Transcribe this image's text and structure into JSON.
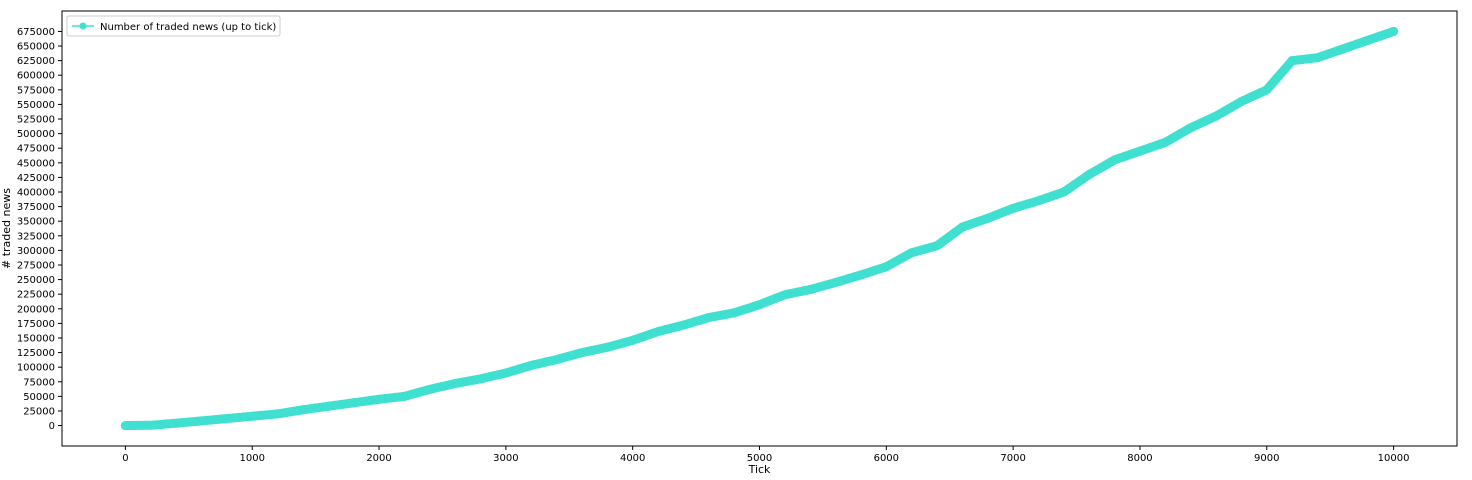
{
  "chart_data": {
    "type": "line",
    "title": "",
    "xlabel": "Tick",
    "ylabel": "# traded news",
    "xlim": [
      -500,
      10500
    ],
    "ylim": [
      -35000,
      710000
    ],
    "xticks": [
      0,
      1000,
      2000,
      3000,
      4000,
      5000,
      6000,
      7000,
      8000,
      9000,
      10000
    ],
    "yticks": [
      0,
      25000,
      50000,
      75000,
      100000,
      125000,
      150000,
      175000,
      200000,
      225000,
      250000,
      275000,
      300000,
      325000,
      350000,
      375000,
      400000,
      425000,
      450000,
      475000,
      500000,
      525000,
      550000,
      575000,
      600000,
      625000,
      650000,
      675000
    ],
    "grid": false,
    "legend_position": "top-left",
    "series": [
      {
        "name": "Number of traded news (up to tick)",
        "color": "#40e0d0",
        "marker": "circle",
        "x": [
          0,
          200,
          400,
          600,
          800,
          1000,
          1200,
          1400,
          1600,
          1800,
          2000,
          2200,
          2400,
          2600,
          2800,
          3000,
          3200,
          3400,
          3600,
          3800,
          4000,
          4200,
          4400,
          4600,
          4800,
          5000,
          5200,
          5400,
          5600,
          5800,
          6000,
          6200,
          6400,
          6600,
          6800,
          7000,
          7200,
          7400,
          7600,
          7800,
          8000,
          8200,
          8400,
          8600,
          8800,
          9000,
          9200,
          9400,
          9600,
          9800,
          10000
        ],
        "y": [
          0,
          500,
          4000,
          8000,
          12000,
          16000,
          20000,
          27000,
          33000,
          39000,
          45000,
          50000,
          62000,
          72000,
          80000,
          90000,
          103000,
          113000,
          125000,
          134000,
          146000,
          161000,
          172000,
          185000,
          193000,
          207000,
          224000,
          233000,
          245000,
          258000,
          272000,
          296000,
          308000,
          340000,
          355000,
          372000,
          385000,
          400000,
          430000,
          455000,
          470000,
          485000,
          510000,
          530000,
          555000,
          575000,
          625000,
          630000,
          645000,
          660000,
          675000
        ]
      }
    ]
  }
}
